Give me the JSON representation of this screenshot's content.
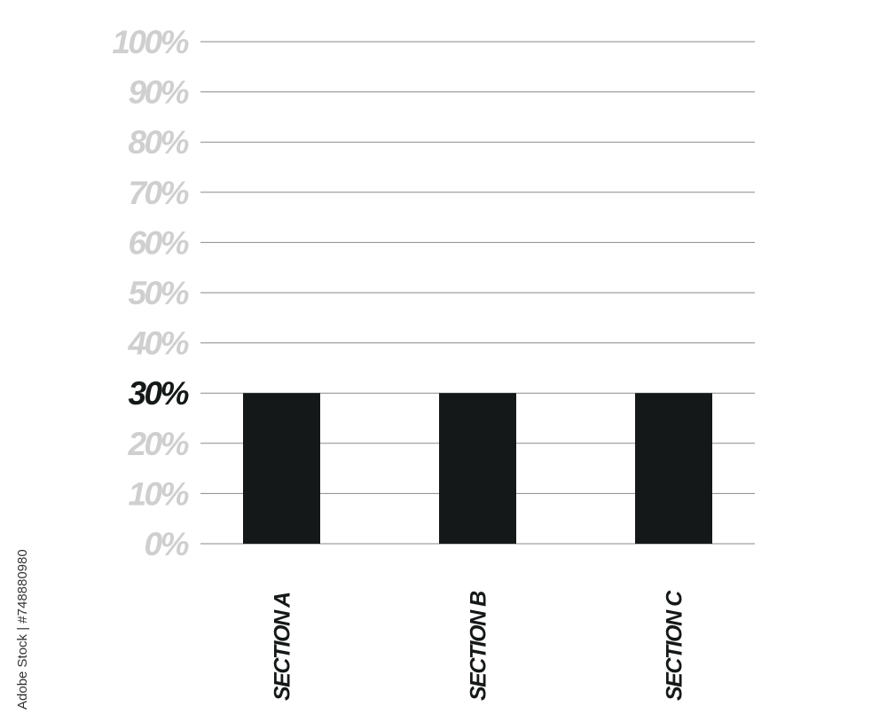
{
  "chart_data": {
    "type": "bar",
    "categories": [
      "SECTION A",
      "SECTION B",
      "SECTION C"
    ],
    "values": [
      30,
      30,
      30
    ],
    "ylim": [
      0,
      100
    ],
    "yticks": [
      "0%",
      "10%",
      "20%",
      "30%",
      "40%",
      "50%",
      "60%",
      "70%",
      "80%",
      "90%",
      "100%"
    ],
    "highlighted_tick": "30%",
    "grid": true,
    "title": "",
    "xlabel": "",
    "ylabel": "",
    "colors": {
      "bar": "#151818",
      "tick": "#cfcfcf",
      "highlight": "#151818",
      "grid": "#8a8a8a"
    }
  },
  "watermark": "Adobe Stock | #748880980"
}
